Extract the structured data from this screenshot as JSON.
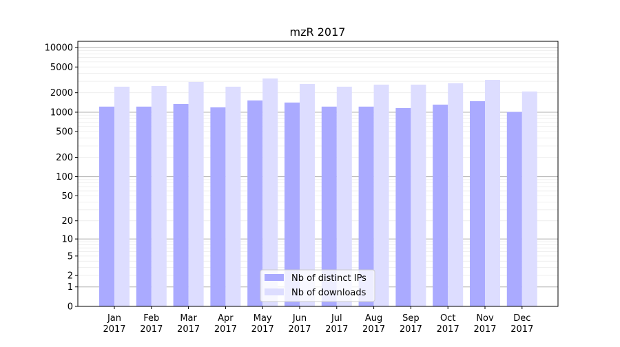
{
  "chart_data": {
    "type": "bar",
    "title": "mzR 2017",
    "xlabel": "",
    "ylabel": "",
    "yscale": "log10(y+1)",
    "ylim": [
      0,
      12000
    ],
    "yticks": [
      0,
      1,
      2,
      5,
      10,
      20,
      50,
      100,
      200,
      500,
      1000,
      2000,
      5000,
      10000
    ],
    "categories": [
      "Jan\n2017",
      "Feb\n2017",
      "Mar\n2017",
      "Apr\n2017",
      "May\n2017",
      "Jun\n2017",
      "Jul\n2017",
      "Aug\n2017",
      "Sep\n2017",
      "Oct\n2017",
      "Nov\n2017",
      "Dec\n2017"
    ],
    "grid": true,
    "legend_position": "bottom-center",
    "series": [
      {
        "name": "Nb of distinct IPs",
        "color": "#aaaaff",
        "values": [
          1220,
          1220,
          1340,
          1190,
          1520,
          1410,
          1220,
          1220,
          1160,
          1310,
          1480,
          1010
        ]
      },
      {
        "name": "Nb of downloads",
        "color": "#ddddff",
        "values": [
          2480,
          2540,
          2940,
          2480,
          3320,
          2730,
          2480,
          2670,
          2670,
          2800,
          3160,
          2090
        ]
      }
    ]
  }
}
